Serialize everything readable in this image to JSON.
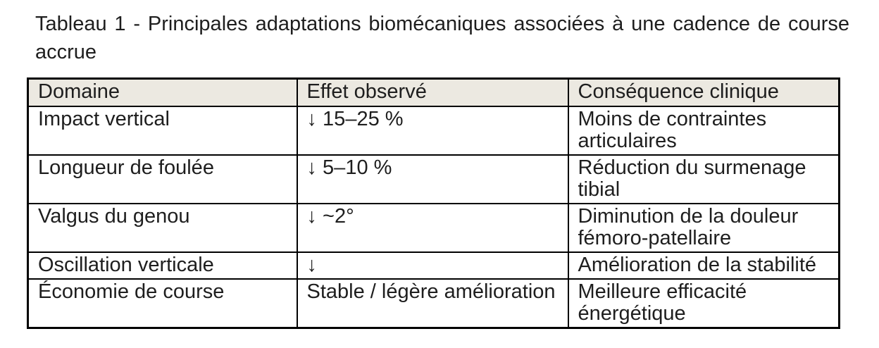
{
  "document": {
    "title": "Tableau 1 - Principales adaptations biomécaniques associées à une cadence de course accrue"
  },
  "table": {
    "columns": [
      "Domaine",
      "Effet observé",
      "Conséquence clinique"
    ],
    "rows": [
      [
        "Impact vertical",
        "↓ 15–25 %",
        "Moins de contraintes articulaires"
      ],
      [
        "Longueur de foulée",
        "↓ 5–10 %",
        "Réduction du surmenage tibial"
      ],
      [
        "Valgus du genou",
        "↓ ~2°",
        "Diminution de la douleur fémoro-patellaire"
      ],
      [
        "Oscillation verticale",
        "↓",
        "Amélioration de la stabilité"
      ],
      [
        "Économie de course",
        "Stable / légère amélioration",
        "Meilleure efficacité énergétique"
      ]
    ],
    "colors": {
      "header_background": "#ECE9E1",
      "border": "#000000",
      "text": "#1E1E1E"
    }
  }
}
